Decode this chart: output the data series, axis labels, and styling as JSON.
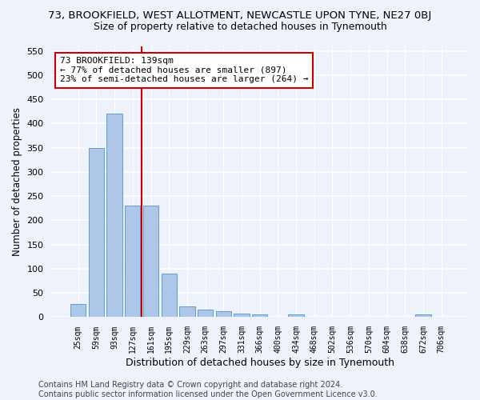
{
  "title": "73, BROOKFIELD, WEST ALLOTMENT, NEWCASTLE UPON TYNE, NE27 0BJ",
  "subtitle": "Size of property relative to detached houses in Tynemouth",
  "xlabel": "Distribution of detached houses by size in Tynemouth",
  "ylabel": "Number of detached properties",
  "bar_color": "#aec6e8",
  "bar_edge_color": "#5a9fd4",
  "annotation_line_color": "#cc0000",
  "annotation_box_color": "#cc0000",
  "annotation_text": "73 BROOKFIELD: 139sqm\n← 77% of detached houses are smaller (897)\n23% of semi-detached houses are larger (264) →",
  "background_color": "#eef2fa",
  "grid_color": "#ffffff",
  "categories": [
    "25sqm",
    "59sqm",
    "93sqm",
    "127sqm",
    "161sqm",
    "195sqm",
    "229sqm",
    "263sqm",
    "297sqm",
    "331sqm",
    "366sqm",
    "400sqm",
    "434sqm",
    "468sqm",
    "502sqm",
    "536sqm",
    "570sqm",
    "604sqm",
    "638sqm",
    "672sqm",
    "706sqm"
  ],
  "values": [
    27,
    350,
    420,
    230,
    230,
    90,
    22,
    15,
    13,
    7,
    6,
    0,
    5,
    0,
    0,
    0,
    0,
    0,
    0,
    5,
    0
  ],
  "ylim": [
    0,
    560
  ],
  "yticks": [
    0,
    50,
    100,
    150,
    200,
    250,
    300,
    350,
    400,
    450,
    500,
    550
  ],
  "figsize": [
    6.0,
    5.0
  ],
  "dpi": 100,
  "footer_text": "Contains HM Land Registry data © Crown copyright and database right 2024.\nContains public sector information licensed under the Open Government Licence v3.0.",
  "title_fontsize": 9.5,
  "subtitle_fontsize": 9,
  "xlabel_fontsize": 9,
  "ylabel_fontsize": 8.5,
  "footer_fontsize": 7
}
